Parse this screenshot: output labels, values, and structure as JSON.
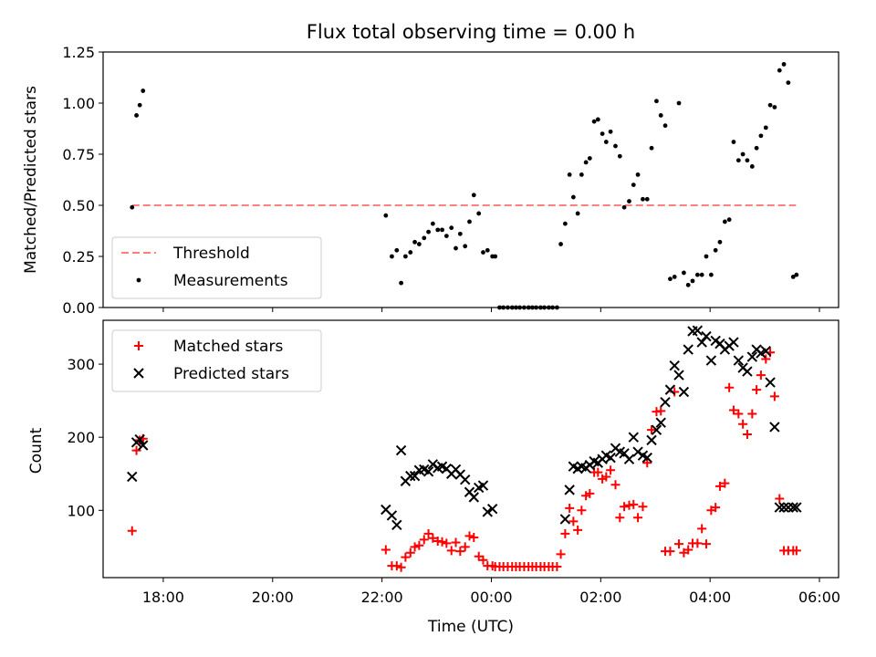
{
  "chart_data": [
    {
      "type": "scatter",
      "title": "Flux total observing time = 0.00 h",
      "ylabel": "Matched/Predicted stars",
      "xlabel": "",
      "xlim": [
        16.9,
        30.35
      ],
      "ylim": [
        0,
        1.25
      ],
      "yticks": [
        "0.00",
        "0.25",
        "0.50",
        "0.75",
        "1.00",
        "1.25"
      ],
      "ytick_values": [
        0,
        0.25,
        0.5,
        0.75,
        1.0,
        1.25
      ],
      "legend_position": "lower-left",
      "series": [
        {
          "name": "Threshold",
          "style": "dashed-line",
          "color": "#ff7f7f",
          "x": [
            17.43,
            29.57
          ],
          "y": [
            0.5,
            0.5
          ]
        },
        {
          "name": "Measurements",
          "style": "dot",
          "color": "#000000",
          "x": [
            17.43,
            17.51,
            17.57,
            17.63,
            22.07,
            22.18,
            22.27,
            22.35,
            22.43,
            22.52,
            22.6,
            22.68,
            22.77,
            22.85,
            22.93,
            23.02,
            23.1,
            23.18,
            23.27,
            23.35,
            23.43,
            23.52,
            23.6,
            23.68,
            23.77,
            23.85,
            23.93,
            24.02,
            24.07,
            24.15,
            24.22,
            24.3,
            24.38,
            24.45,
            24.52,
            24.6,
            24.68,
            24.75,
            24.82,
            24.9,
            24.97,
            25.05,
            25.12,
            25.2,
            25.27,
            25.35,
            25.43,
            25.5,
            25.58,
            25.65,
            25.73,
            25.8,
            25.88,
            25.95,
            26.03,
            26.1,
            26.18,
            26.27,
            26.35,
            26.43,
            26.52,
            26.6,
            26.68,
            26.77,
            26.85,
            26.93,
            27.02,
            27.1,
            27.18,
            27.27,
            27.35,
            27.43,
            27.52,
            27.6,
            27.68,
            27.77,
            27.85,
            27.93,
            28.02,
            28.1,
            28.18,
            28.27,
            28.35,
            28.43,
            28.52,
            28.6,
            28.68,
            28.77,
            28.85,
            28.93,
            29.02,
            29.1,
            29.18,
            29.27,
            29.35,
            29.43,
            29.52,
            29.58
          ],
          "y": [
            0.49,
            0.94,
            0.99,
            1.06,
            0.45,
            0.25,
            0.28,
            0.12,
            0.25,
            0.27,
            0.32,
            0.31,
            0.34,
            0.37,
            0.41,
            0.38,
            0.38,
            0.35,
            0.39,
            0.29,
            0.36,
            0.3,
            0.42,
            0.55,
            0.46,
            0.27,
            0.28,
            0.25,
            0.25,
            0,
            0,
            0,
            0,
            0,
            0,
            0,
            0,
            0,
            0,
            0,
            0,
            0,
            0,
            0,
            0.31,
            0.41,
            0.65,
            0.54,
            0.46,
            0.65,
            0.71,
            0.73,
            0.91,
            0.92,
            0.85,
            0.81,
            0.86,
            0.79,
            0.74,
            0.49,
            0.52,
            0.6,
            0.65,
            0.53,
            0.53,
            0.78,
            1.01,
            0.94,
            0.89,
            0.14,
            0.15,
            1.0,
            0.17,
            0.11,
            0.13,
            0.16,
            0.16,
            0.25,
            0.16,
            0.28,
            0.32,
            0.42,
            0.43,
            0.81,
            0.72,
            0.75,
            0.72,
            0.69,
            0.78,
            0.84,
            0.88,
            0.99,
            0.98,
            1.16,
            1.19,
            1.1,
            0.15,
            0.16
          ]
        }
      ]
    },
    {
      "type": "scatter",
      "title": "",
      "ylabel": "Count",
      "xlabel": "Time (UTC)",
      "xlim": [
        16.9,
        30.35
      ],
      "ylim": [
        8,
        360
      ],
      "xticks": [
        "18:00",
        "20:00",
        "22:00",
        "00:00",
        "02:00",
        "04:00",
        "06:00"
      ],
      "xtick_values": [
        18,
        20,
        22,
        24,
        26,
        28,
        30
      ],
      "yticks": [
        "100",
        "200",
        "300"
      ],
      "ytick_values": [
        100,
        200,
        300
      ],
      "legend_position": "top-left",
      "series": [
        {
          "name": "Matched stars",
          "style": "plus",
          "color": "#ff0000",
          "x": [
            17.43,
            17.51,
            17.57,
            17.63,
            22.07,
            22.18,
            22.27,
            22.35,
            22.43,
            22.52,
            22.6,
            22.68,
            22.77,
            22.85,
            22.93,
            23.02,
            23.1,
            23.18,
            23.27,
            23.35,
            23.43,
            23.52,
            23.6,
            23.68,
            23.77,
            23.85,
            23.93,
            24.02,
            24.07,
            24.15,
            24.22,
            24.3,
            24.38,
            24.45,
            24.52,
            24.6,
            24.68,
            24.75,
            24.82,
            24.9,
            24.97,
            25.05,
            25.12,
            25.2,
            25.27,
            25.35,
            25.43,
            25.5,
            25.58,
            25.65,
            25.73,
            25.8,
            25.88,
            25.95,
            26.03,
            26.1,
            26.18,
            26.27,
            26.35,
            26.43,
            26.52,
            26.6,
            26.68,
            26.77,
            26.85,
            26.93,
            27.02,
            27.1,
            27.18,
            27.27,
            27.35,
            27.43,
            27.52,
            27.6,
            27.68,
            27.77,
            27.85,
            27.93,
            28.02,
            28.1,
            28.18,
            28.27,
            28.35,
            28.43,
            28.52,
            28.6,
            28.68,
            28.77,
            28.85,
            28.93,
            29.02,
            29.1,
            29.18,
            29.27,
            29.35,
            29.43,
            29.52,
            29.58
          ],
          "y": [
            72,
            182,
            196,
            198,
            46,
            24,
            24,
            22,
            36,
            42,
            50,
            52,
            60,
            68,
            62,
            58,
            57,
            55,
            45,
            56,
            44,
            50,
            65,
            63,
            37,
            32,
            24,
            24,
            23,
            23,
            23,
            23,
            23,
            23,
            23,
            23,
            23,
            23,
            23,
            23,
            23,
            23,
            23,
            23,
            40,
            68,
            103,
            85,
            73,
            100,
            120,
            123,
            152,
            152,
            143,
            146,
            155,
            135,
            90,
            105,
            107,
            108,
            90,
            105,
            165,
            210,
            235,
            236,
            44,
            44,
            262,
            54,
            42,
            46,
            55,
            55,
            75,
            54,
            100,
            104,
            133,
            137,
            268,
            237,
            232,
            218,
            204,
            232,
            265,
            285,
            307,
            316,
            256,
            116,
            45,
            45,
            45,
            45
          ]
        },
        {
          "name": "Predicted stars",
          "style": "x",
          "color": "#000000",
          "x": [
            17.43,
            17.51,
            17.57,
            17.63,
            22.07,
            22.18,
            22.27,
            22.35,
            22.43,
            22.52,
            22.6,
            22.68,
            22.77,
            22.85,
            22.93,
            23.02,
            23.1,
            23.18,
            23.27,
            23.35,
            23.43,
            23.52,
            23.6,
            23.68,
            23.77,
            23.85,
            23.93,
            24.02,
            25.35,
            25.43,
            25.5,
            25.58,
            25.65,
            25.73,
            25.8,
            25.88,
            25.95,
            26.03,
            26.1,
            26.18,
            26.27,
            26.35,
            26.43,
            26.52,
            26.6,
            26.68,
            26.77,
            26.85,
            26.93,
            27.02,
            27.1,
            27.18,
            27.27,
            27.35,
            27.43,
            27.52,
            27.6,
            27.68,
            27.77,
            27.85,
            27.93,
            28.02,
            28.1,
            28.18,
            28.27,
            28.35,
            28.43,
            28.52,
            28.6,
            28.68,
            28.77,
            28.85,
            28.93,
            29.02,
            29.1,
            29.18,
            29.27,
            29.35,
            29.43,
            29.52,
            29.58
          ],
          "y": [
            146,
            193,
            197,
            189,
            101,
            93,
            80,
            182,
            140,
            147,
            147,
            155,
            156,
            153,
            163,
            158,
            160,
            157,
            150,
            156,
            149,
            142,
            125,
            118,
            131,
            134,
            98,
            102,
            88,
            128,
            160,
            157,
            160,
            158,
            162,
            167,
            165,
            170,
            175,
            172,
            185,
            180,
            178,
            170,
            200,
            180,
            175,
            172,
            196,
            210,
            220,
            248,
            265,
            298,
            285,
            262,
            320,
            345,
            346,
            330,
            338,
            305,
            332,
            328,
            320,
            325,
            330,
            305,
            295,
            290,
            310,
            320,
            315,
            318,
            275,
            214,
            104,
            104,
            104,
            104,
            104
          ]
        }
      ]
    }
  ]
}
